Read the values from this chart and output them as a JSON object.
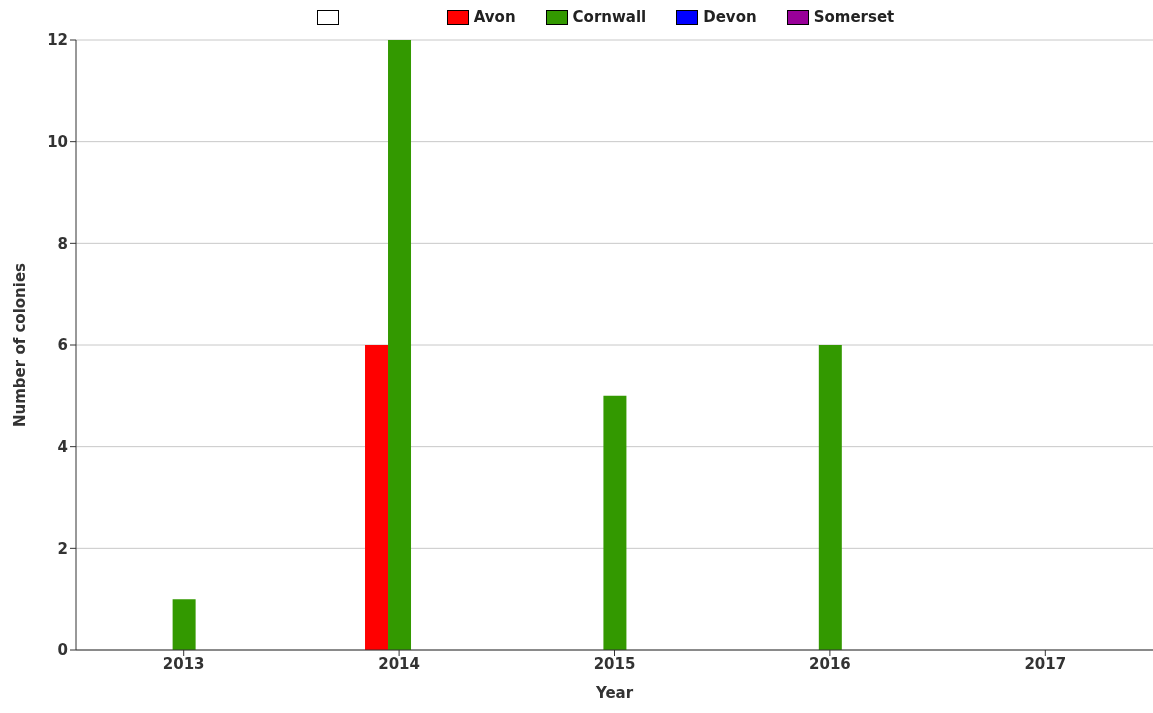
{
  "chart_data": {
    "type": "bar",
    "xlabel": "Year",
    "ylabel": "Number of colonies",
    "categories": [
      "2013",
      "2014",
      "2015",
      "2016",
      "2017"
    ],
    "series": [
      {
        "color": "#ffffff",
        "values": [
          0,
          0,
          0,
          0,
          0
        ]
      },
      {
        "name": "Avon",
        "color": "#ff0000",
        "values": [
          0,
          6,
          0,
          0,
          0
        ]
      },
      {
        "name": "Cornwall",
        "color": "#339900",
        "values": [
          1,
          12,
          5,
          6,
          0
        ]
      },
      {
        "name": "Devon",
        "color": "#0000ff",
        "values": [
          0,
          0,
          0,
          0,
          0
        ]
      },
      {
        "name": "Somerset",
        "color": "#990099",
        "values": [
          0,
          0,
          0,
          0,
          0
        ]
      }
    ],
    "ylim": [
      0,
      12
    ],
    "yticks": [
      0,
      2,
      4,
      6,
      8,
      10,
      12
    ],
    "grid": "y",
    "legend": "top"
  }
}
